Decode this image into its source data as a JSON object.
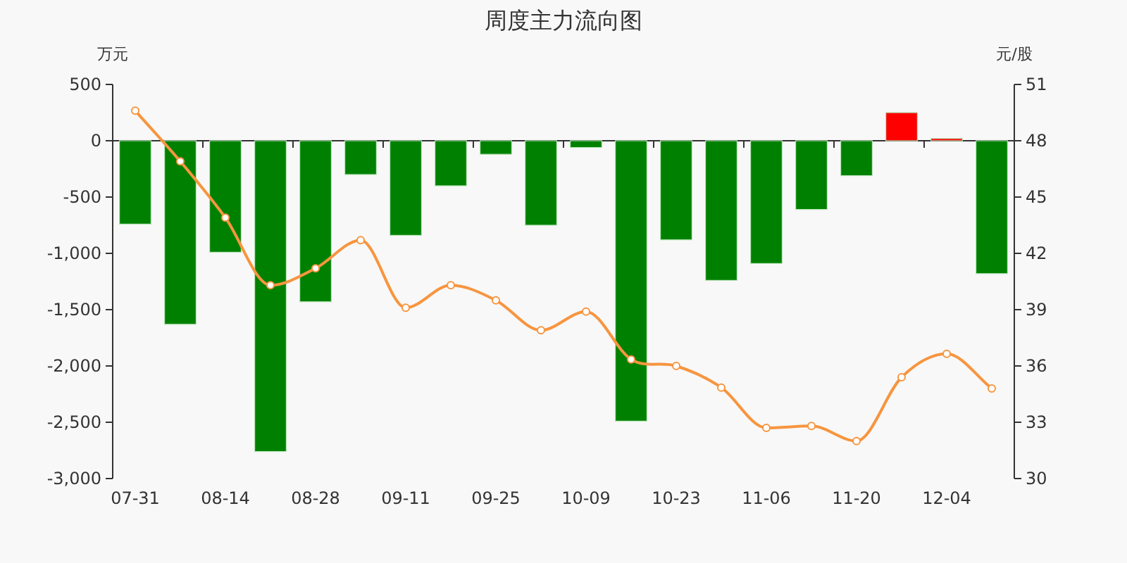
{
  "chart_data": {
    "type": "bar",
    "title": "周度主力流向图",
    "ylabel": "万元",
    "y2label": "元/股",
    "categories": [
      "07-31",
      null,
      "08-14",
      null,
      "08-28",
      null,
      "09-11",
      null,
      "09-25",
      null,
      "10-09",
      null,
      "10-23",
      null,
      "11-06",
      null,
      "11-20",
      null,
      "12-04",
      null
    ],
    "series": [
      {
        "colors": [
          "#008000",
          "#008000",
          "#008000",
          "#008000",
          "#008000",
          "#008000",
          "#008000",
          "#008000",
          "#008000",
          "#008000",
          "#008000",
          "#008000",
          "#008000",
          "#008000",
          "#008000",
          "#008000",
          "#008000",
          "#ff0000",
          "#ff0000",
          "#008000"
        ],
        "values": [
          -740,
          -1630,
          -990,
          -2760,
          -1430,
          -300,
          -840,
          -400,
          -120,
          -750,
          -60,
          -2490,
          -880,
          -1240,
          -1090,
          -610,
          -310,
          250,
          20,
          -1180
        ]
      },
      {
        "type": "line",
        "axis": "y2",
        "color": "#f7953f",
        "marker": "circle",
        "values": [
          49.6,
          46.9,
          43.9,
          40.3,
          41.2,
          42.7,
          39.1,
          40.3,
          39.5,
          37.9,
          38.9,
          36.35,
          36.0,
          34.85,
          32.7,
          32.8,
          32.0,
          35.4,
          36.65,
          34.8
        ]
      }
    ],
    "ylim": [
      -3000,
      500
    ],
    "yticks": [
      {
        "value": -3000,
        "label": "-3,000"
      },
      {
        "value": -2500,
        "label": "-2,500"
      },
      {
        "value": -2000,
        "label": "-2,000"
      },
      {
        "value": -1500,
        "label": "-1,500"
      },
      {
        "value": -1000,
        "label": "-1,000"
      },
      -500,
      0,
      500
    ],
    "y2lim": [
      30,
      51
    ],
    "y2ticks": [
      30,
      33,
      36,
      39,
      42,
      45,
      48,
      51
    ]
  }
}
